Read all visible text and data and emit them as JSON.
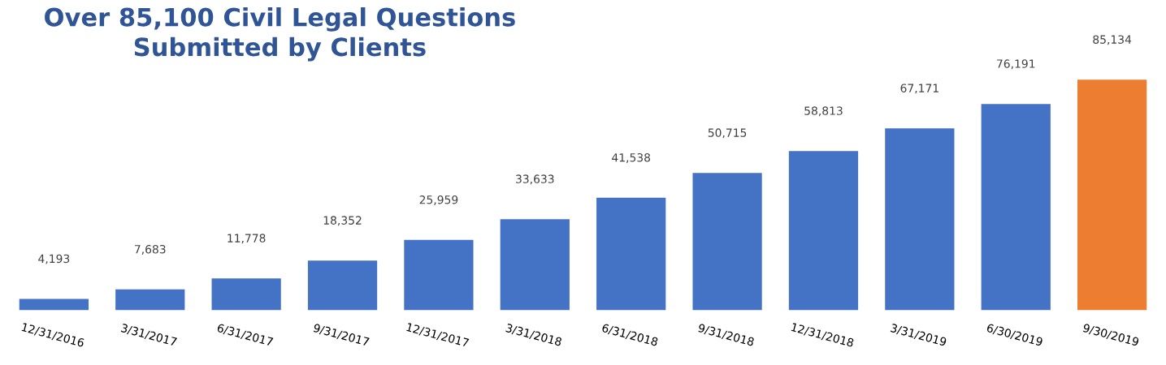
{
  "chart_data": {
    "type": "bar",
    "title": "Over 85,100 Civil Legal Questions\nSubmitted by Clients",
    "categories": [
      "12/31/2016",
      "3/31/2017",
      "6/31/2017",
      "9/31/2017",
      "12/31/2017",
      "3/31/2018",
      "6/31/2018",
      "9/31/2018",
      "12/31/2018",
      "3/31/2019",
      "6/30/2019",
      "9/30/2019"
    ],
    "values": [
      4193,
      7683,
      11778,
      18352,
      25959,
      33633,
      41538,
      50715,
      58813,
      67171,
      76191,
      85134
    ],
    "colors": [
      "#4472c4",
      "#4472c4",
      "#4472c4",
      "#4472c4",
      "#4472c4",
      "#4472c4",
      "#4472c4",
      "#4472c4",
      "#4472c4",
      "#4472c4",
      "#4472c4",
      "#ed7d31"
    ],
    "value_labels": [
      "4,193",
      "7,683",
      "11,778",
      "18,352",
      "25,959",
      "33,633",
      "41,538",
      "50,715",
      "58,813",
      "67,171",
      "76,191",
      "85,134"
    ],
    "grid": false,
    "legend": false
  }
}
